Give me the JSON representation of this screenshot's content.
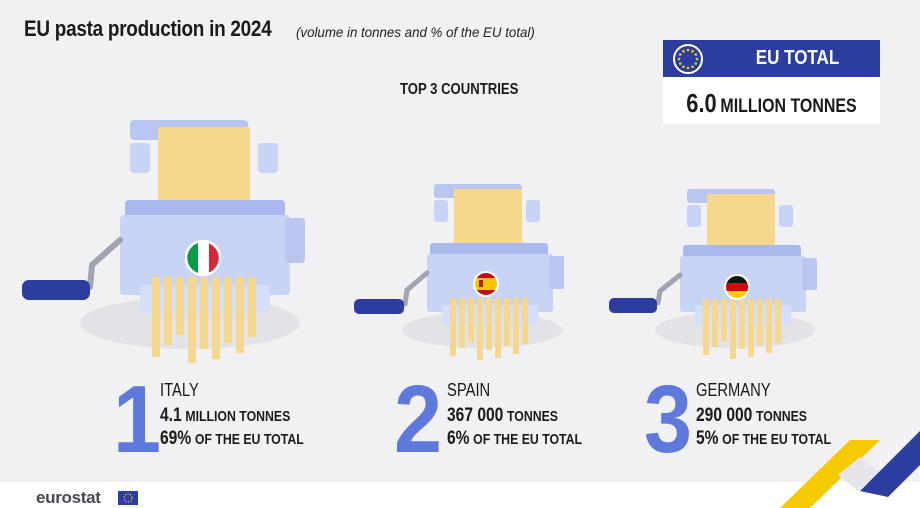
{
  "title": "EU pasta production in 2024",
  "subtitle": "(volume in tonnes and % of the EU total)",
  "section_label": "TOP 3 COUNTRIES",
  "eu_total": {
    "label": "EU TOTAL",
    "value": "6.0",
    "unit": "MILLION TONNES"
  },
  "chart_data": {
    "type": "table",
    "title": "EU pasta production in 2024",
    "subtitle": "(volume in tonnes and % of the EU total)",
    "total": {
      "label": "EU TOTAL",
      "value": 6.0,
      "unit": "MILLION TONNES"
    },
    "columns": [
      "rank",
      "country",
      "volume",
      "share"
    ],
    "rows": [
      {
        "rank": "1",
        "country": "ITALY",
        "volume_value": "4.1",
        "volume_unit": "MILLION TONNES",
        "share_value": "69%",
        "share_unit": "OF THE EU TOTAL",
        "tonnes": 4100000,
        "share_pct": 69,
        "flag": "italy-flag"
      },
      {
        "rank": "2",
        "country": "SPAIN",
        "volume_value": "367 000",
        "volume_unit": "TONNES",
        "share_value": "6%",
        "share_unit": "OF THE EU TOTAL",
        "tonnes": 367000,
        "share_pct": 6,
        "flag": "spain-flag"
      },
      {
        "rank": "3",
        "country": "GERMANY",
        "volume_value": "290 000",
        "volume_unit": "TONNES",
        "share_value": "5%",
        "share_unit": "OF THE EU TOTAL",
        "tonnes": 290000,
        "share_pct": 5,
        "flag": "germany-flag"
      }
    ]
  },
  "colors": {
    "accent_blue": "#5e78dc",
    "dark_blue": "#2d3d9f",
    "machine_blue": "#c7d4f6",
    "pasta_yellow": "#f5d78d",
    "corner_yellow": "#f7c900"
  },
  "footer": {
    "brand": "eurostat"
  },
  "icons": [
    "eu-flag-icon",
    "pasta-machine-icon",
    "crank-handle-icon",
    "eurostat-logo-icon"
  ]
}
